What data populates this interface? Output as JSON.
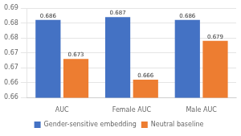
{
  "chart_data": {
    "type": "bar",
    "categories": [
      "AUC",
      "Female AUC",
      "Male AUC"
    ],
    "series": [
      {
        "name": "Gender-sensitive embedding",
        "color": "#4472C4",
        "values": [
          0.686,
          0.687,
          0.686
        ]
      },
      {
        "name": "Neutral baseline",
        "color": "#ED7D31",
        "values": [
          0.673,
          0.666,
          0.679
        ]
      }
    ],
    "ylim": [
      0.66,
      0.69
    ],
    "yticks": [
      0.66,
      {
        "value": 0.665,
        "label": "0.66"
      },
      {
        "value": 0.67,
        "label": "0.67"
      },
      {
        "value": 0.675,
        "label": "0.67"
      },
      {
        "value": 0.68,
        "label": "0.68"
      },
      {
        "value": 0.685,
        "label": "0.68"
      },
      {
        "value": 0.69,
        "label": "0.69"
      }
    ],
    "grid": true,
    "legend": "bottom",
    "data_labels": true
  }
}
